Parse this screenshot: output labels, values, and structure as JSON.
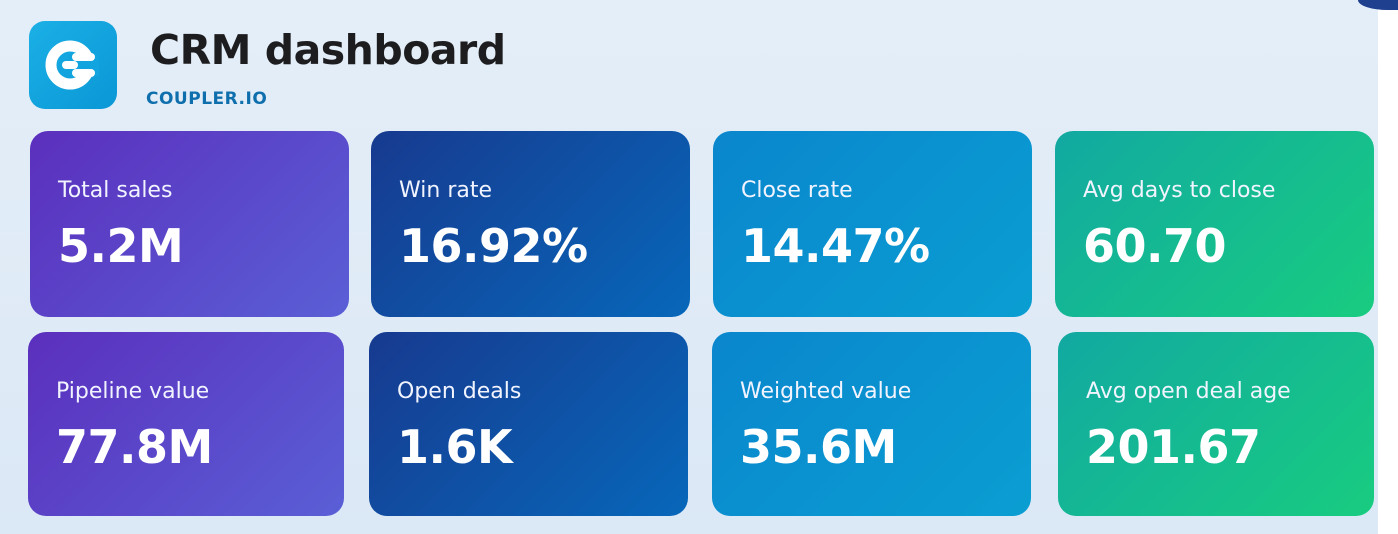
{
  "header": {
    "title": "CRM dashboard",
    "brand": "COUPLER.IO",
    "logo_icon": "coupler-logo-icon",
    "logo_color": "#12a6e0"
  },
  "kpis": [
    {
      "label": "Total sales",
      "value": "5.2M"
    },
    {
      "label": "Win rate",
      "value": "16.92%"
    },
    {
      "label": "Close rate",
      "value": "14.47%"
    },
    {
      "label": "Avg days to close",
      "value": "60.70"
    },
    {
      "label": "Pipeline value",
      "value": "77.8M"
    },
    {
      "label": "Open deals",
      "value": "1.6K"
    },
    {
      "label": "Weighted value",
      "value": "35.6M"
    },
    {
      "label": "Avg open deal age",
      "value": "201.67"
    }
  ]
}
